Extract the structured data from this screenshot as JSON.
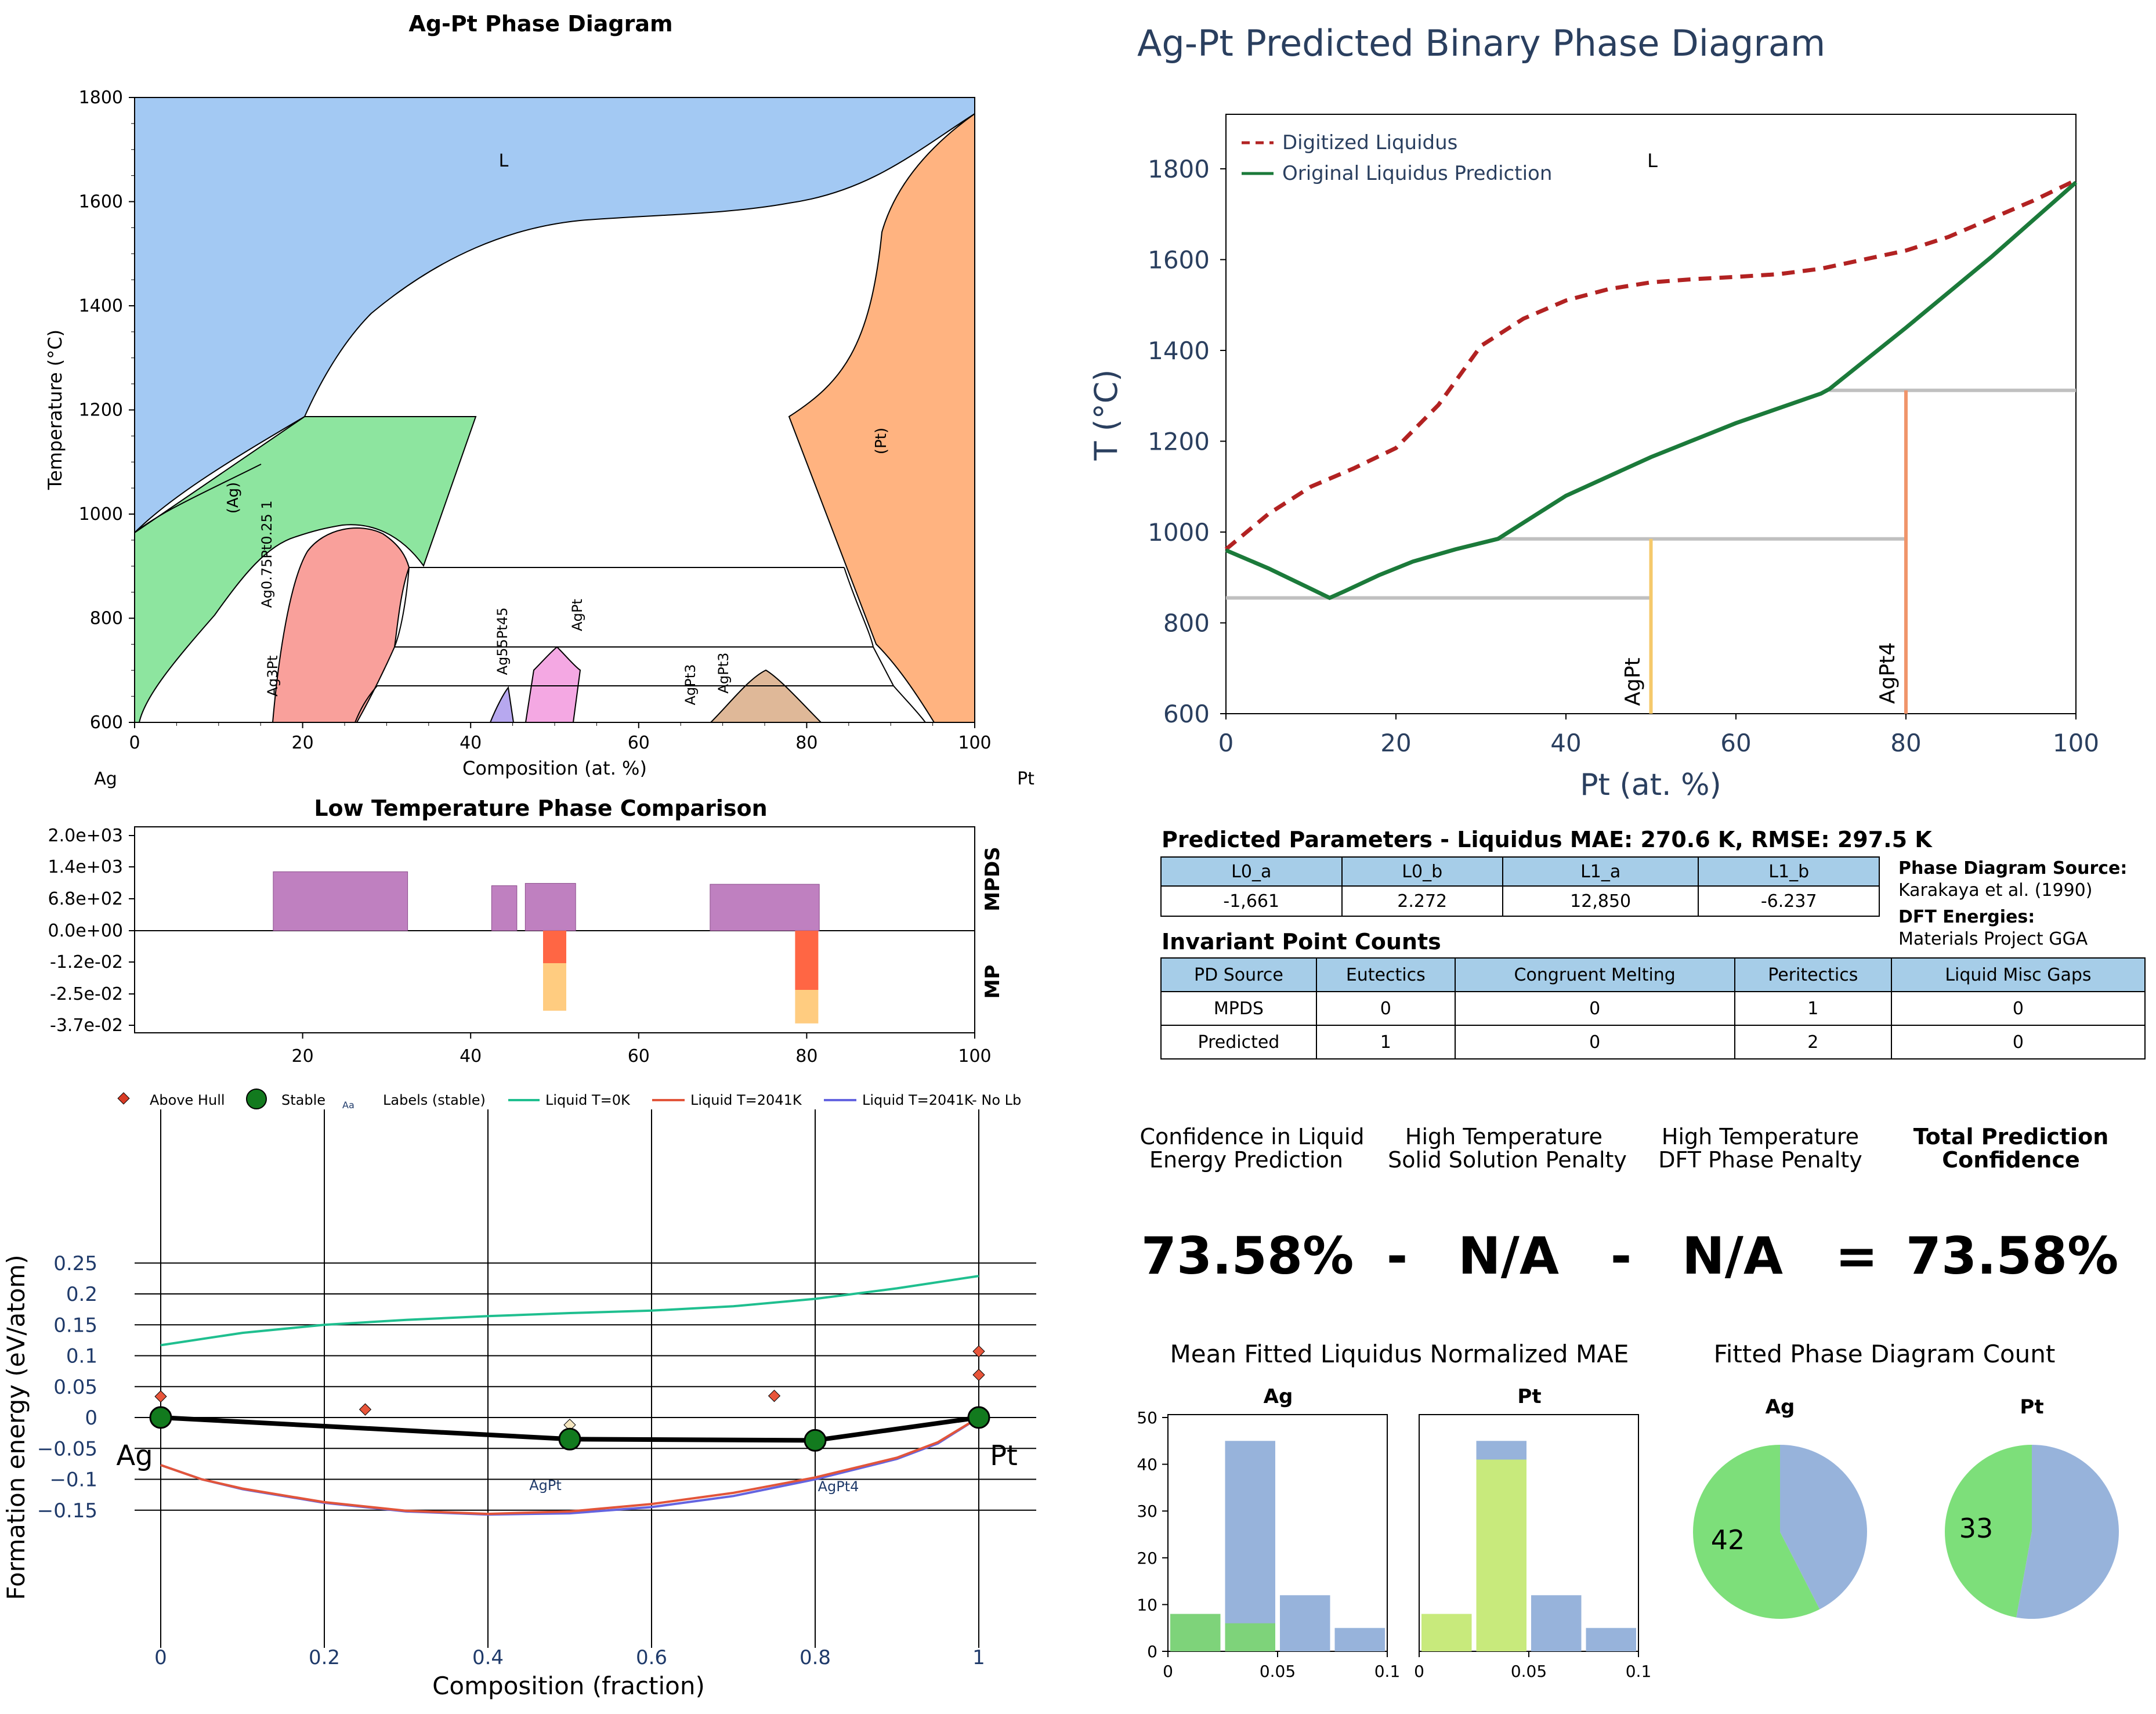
{
  "phase_diagram": {
    "title": "Ag-Pt Phase Diagram",
    "xlabel": "Composition (at. %)",
    "ylabel": "Temperature (°C)",
    "left_element": "Ag",
    "right_element": "Pt",
    "xticks": [
      "0",
      "20",
      "40",
      "60",
      "80",
      "100"
    ],
    "yticks": [
      "600",
      "800",
      "1000",
      "1200",
      "1400",
      "1600",
      "1800"
    ],
    "labels": {
      "liquid": "L",
      "ag_solid": "(Ag)",
      "pt_solid": "(Pt)",
      "ag075": "Ag0.75Pt0.25 1",
      "ag3pt": "Ag3Pt",
      "ag55": "Ag55Pt45",
      "agpt": "AgPt",
      "agpt3a": "AgPt3",
      "agpt3b": "AgPt3"
    }
  },
  "comparison": {
    "title": "Low Temperature Phase Comparison",
    "yticks": [
      "2.0e+03",
      "1.4e+03",
      "6.8e+02",
      "0.0e+00",
      "-1.2e-02",
      "-2.5e-02",
      "-3.7e-02"
    ],
    "xticks": [
      "20",
      "40",
      "60",
      "80",
      "100"
    ],
    "right_top": "MPDS",
    "right_bottom": "MP"
  },
  "hull": {
    "ylabel": "Formation energy (eV/atom)",
    "xlabel": "Composition (fraction)",
    "xticks": [
      "0",
      "0.2",
      "0.4",
      "0.6",
      "0.8",
      "1"
    ],
    "yticks": [
      "0.25",
      "0.2",
      "0.15",
      "0.1",
      "0.05",
      "0",
      "−0.05",
      "−0.1",
      "−0.15"
    ],
    "left_element": "Ag",
    "right_element": "Pt",
    "legend": {
      "above_hull": "Above Hull",
      "stable": "Stable",
      "labels_prefix": "Aa",
      "labels": "Labels (stable)",
      "liq0": "Liquid T=0K",
      "liq2041": "Liquid T=2041K",
      "liq2041nolb": "Liquid T=2041K- No Lb"
    },
    "phase_labels": {
      "agpt": "AgPt",
      "agpt4": "AgPt4"
    }
  },
  "predicted": {
    "title": "Ag-Pt Predicted Binary Phase Diagram",
    "xlabel": "Pt (at. %)",
    "ylabel": "T (°C)",
    "xticks": [
      "0",
      "20",
      "40",
      "60",
      "80",
      "100"
    ],
    "yticks": [
      "600",
      "800",
      "1000",
      "1200",
      "1400",
      "1600",
      "1800"
    ],
    "legend_digitized": "Digitized Liquidus",
    "legend_original": "Original Liquidus Prediction",
    "liquid_label": "L",
    "agpt_label": "AgPt",
    "agpt4_label": "AgPt4"
  },
  "params": {
    "title": "Predicted Parameters - Liquidus MAE: 270.6 K, RMSE: 297.5 K",
    "headers": [
      "L0_a",
      "L0_b",
      "L1_a",
      "L1_b"
    ],
    "values": [
      "-1,661",
      "2.272",
      "12,850",
      "-6.237"
    ],
    "source_label": "Phase Diagram Source:",
    "source": "Karakaya et al. (1990)",
    "dft_label": "DFT Energies:",
    "dft": "Materials Project GGA"
  },
  "invariants": {
    "title": "Invariant Point Counts",
    "headers": [
      "PD Source",
      "Eutectics",
      "Congruent Melting",
      "Peritectics",
      "Liquid Misc Gaps"
    ],
    "rows": [
      [
        "MPDS",
        "0",
        "0",
        "1",
        "0"
      ],
      [
        "Predicted",
        "1",
        "0",
        "2",
        "0"
      ]
    ]
  },
  "confidence": {
    "h1a": "Confidence in Liquid",
    "h1b": "Energy Prediction",
    "h2a": "High Temperature",
    "h2b": "Solid Solution Penalty",
    "h3a": "High Temperature",
    "h3b": "DFT Phase Penalty",
    "h4a": "Total Prediction",
    "h4b": "Confidence",
    "v1": "73.58%",
    "op1": "-",
    "v2": "N/A",
    "op2": "-",
    "v3": "N/A",
    "op3": "=",
    "v4": "73.58%"
  },
  "mae": {
    "title": "Mean Fitted Liquidus Normalized MAE",
    "left_title": "Ag",
    "right_title": "Pt",
    "yticks": [
      "0",
      "10",
      "20",
      "30",
      "40",
      "50"
    ],
    "xticks": [
      "0",
      "0.05",
      "0.1"
    ]
  },
  "count": {
    "title": "Fitted Phase Diagram Count",
    "left_title": "Ag",
    "right_title": "Pt",
    "left_value": "42",
    "right_value": "33"
  },
  "colors": {
    "liquid_blue": "#a3c9f3",
    "ag_green": "#8de59f",
    "pt_orange": "#ffb380",
    "ag3pt_red": "#f9a09b",
    "agpt_pink": "#f4a8e3",
    "agpt3_tan": "#dfb898",
    "ag55_violet": "#b7a8ef",
    "mpds_purple": "#bf80c0",
    "mp_red": "#ff6644",
    "mp_yellow": "#ffcc80",
    "liquid_teal": "#1fbf8f",
    "liquid_red": "#e2553a",
    "liquid_blue_line": "#6464e0",
    "digitized_red": "#b22222",
    "prediction_green": "#1b7a3a",
    "bar_blue": "#97b3db",
    "bar_green": "#7ed37a",
    "bar_lime": "#c8ea7c",
    "pie_green": "#7ddf7a",
    "pie_blue": "#97b3db"
  },
  "chart_data": [
    {
      "type": "area",
      "title": "Ag-Pt Phase Diagram",
      "xlabel": "Composition (at. %)",
      "ylabel": "Temperature (°C)",
      "xlim": [
        0,
        100
      ],
      "ylim": [
        600,
        1800
      ],
      "series": [
        {
          "name": "L",
          "x": [
            0,
            20,
            30,
            40,
            50,
            60,
            70,
            80,
            90,
            100
          ],
          "y": [
            970,
            1180,
            1380,
            1500,
            1545,
            1560,
            1575,
            1600,
            1650,
            1775
          ]
        },
        {
          "name": "(Pt)",
          "x": [
            78,
            85,
            88,
            90,
            100
          ],
          "y": [
            1185,
            1500,
            1660,
            1700,
            1775
          ]
        }
      ]
    },
    {
      "type": "bar",
      "title": "Low Temperature Phase Comparison",
      "series": [
        {
          "name": "MPDS",
          "x_ranges": [
            [
              16.5,
              32.5
            ],
            [
              42.5,
              45.5
            ],
            [
              46.5,
              52.5
            ],
            [
              68.5,
              81.5
            ]
          ],
          "values": [
            1270,
            970,
            1020,
            1000
          ]
        },
        {
          "name": "MP",
          "x": [
            50,
            80
          ],
          "values": [
            -0.0315,
            -0.0365
          ]
        }
      ],
      "xlim": [
        0,
        100
      ]
    },
    {
      "type": "line",
      "xlabel": "Composition (fraction)",
      "ylabel": "Formation energy (eV/atom)",
      "xlim": [
        -0.02,
        1.07
      ],
      "ylim": [
        -0.16,
        0.25
      ],
      "series": [
        {
          "name": "Liquid T=0K",
          "x": [
            0,
            0.1,
            0.2,
            0.3,
            0.4,
            0.5,
            0.6,
            0.7,
            0.8,
            0.9,
            1.0
          ],
          "y": [
            0.117,
            0.137,
            0.15,
            0.158,
            0.164,
            0.169,
            0.173,
            0.18,
            0.192,
            0.209,
            0.229
          ]
        },
        {
          "name": "Liquid T=2041K",
          "x": [
            0,
            0.05,
            0.1,
            0.2,
            0.3,
            0.4,
            0.5,
            0.6,
            0.7,
            0.8,
            0.9,
            0.95,
            1.0
          ],
          "y": [
            -0.077,
            -0.1,
            -0.115,
            -0.137,
            -0.151,
            -0.156,
            -0.152,
            -0.14,
            -0.122,
            -0.097,
            -0.065,
            -0.04,
            0
          ]
        },
        {
          "name": "Liquid T=2041K- No Lb",
          "x": [
            0,
            0.05,
            0.1,
            0.2,
            0.3,
            0.4,
            0.5,
            0.6,
            0.7,
            0.8,
            0.9,
            0.95,
            1.0
          ],
          "y": [
            -0.077,
            -0.1,
            -0.116,
            -0.138,
            -0.152,
            -0.157,
            -0.155,
            -0.145,
            -0.127,
            -0.1,
            -0.067,
            -0.042,
            0
          ]
        },
        {
          "name": "Stable",
          "x": [
            0,
            0.5,
            0.8,
            1.0
          ],
          "y": [
            0,
            -0.035,
            -0.037,
            0
          ]
        },
        {
          "name": "Above Hull",
          "x": [
            0,
            0,
            0.25,
            0.5,
            0.75,
            1.0,
            1.0
          ],
          "y": [
            0.034,
            0.008,
            0.013,
            -0.012,
            0.035,
            0.069,
            0.107
          ]
        }
      ]
    },
    {
      "type": "line",
      "title": "Ag-Pt Predicted Binary Phase Diagram",
      "xlabel": "Pt (at. %)",
      "ylabel": "T (°C)",
      "xlim": [
        0,
        100
      ],
      "ylim": [
        600,
        1920
      ],
      "series": [
        {
          "name": "Digitized Liquidus",
          "x": [
            0,
            5,
            10,
            15,
            20,
            25,
            30,
            35,
            40,
            45,
            50,
            55,
            60,
            65,
            70,
            75,
            80,
            85,
            90,
            95,
            100
          ],
          "y": [
            962,
            1040,
            1100,
            1140,
            1185,
            1280,
            1410,
            1470,
            1510,
            1535,
            1550,
            1557,
            1562,
            1568,
            1580,
            1600,
            1620,
            1650,
            1690,
            1730,
            1775
          ]
        },
        {
          "name": "Original Liquidus Prediction",
          "x": [
            0,
            5,
            10,
            12.2,
            14,
            18,
            22,
            27,
            32,
            40,
            50,
            60,
            70,
            71,
            80,
            90,
            100
          ],
          "y": [
            960,
            920,
            875,
            855,
            870,
            905,
            935,
            962,
            985,
            1080,
            1165,
            1240,
            1305,
            1315,
            1450,
            1605,
            1770
          ]
        }
      ]
    },
    {
      "type": "bar",
      "title": "Mean Fitted Liquidus Normalized MAE - Ag",
      "categories": [
        "0-0.025",
        "0.025-0.05",
        "0.05-0.075",
        "0.075-0.1"
      ],
      "series": [
        {
          "values": [
            8,
            45,
            12,
            5
          ]
        },
        {
          "values": [
            8,
            6,
            0,
            0
          ]
        }
      ]
    },
    {
      "type": "bar",
      "title": "Mean Fitted Liquidus Normalized MAE - Pt",
      "categories": [
        "0-0.025",
        "0.025-0.05",
        "0.05-0.075",
        "0.075-0.1"
      ],
      "series": [
        {
          "values": [
            8,
            45,
            12,
            5
          ]
        },
        {
          "values": [
            8,
            41,
            0,
            0
          ]
        }
      ]
    },
    {
      "type": "pie",
      "title": "Fitted Phase Diagram Count - Ag",
      "values": [
        42,
        31
      ],
      "labels": [
        "42",
        ""
      ]
    },
    {
      "type": "pie",
      "title": "Fitted Phase Diagram Count - Pt",
      "values": [
        33,
        37
      ],
      "labels": [
        "33",
        ""
      ]
    }
  ]
}
